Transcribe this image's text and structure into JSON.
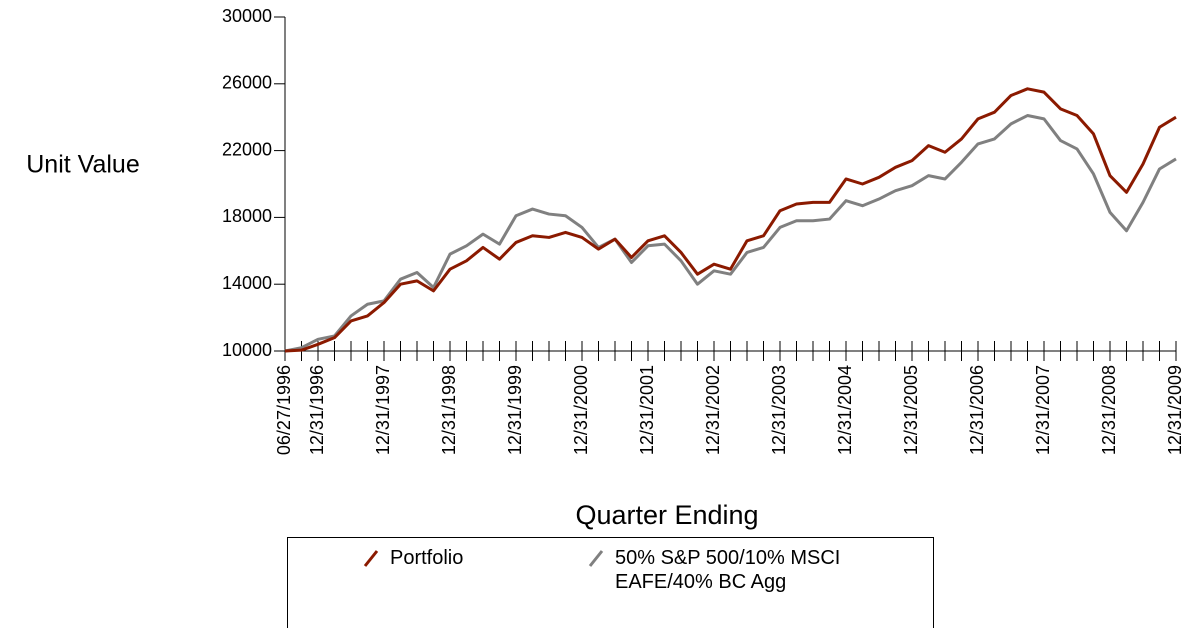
{
  "chart_data": {
    "type": "line",
    "y_label": "Unit Value",
    "x_label": "Quarter Ending",
    "categories": [
      "06/27/1996",
      null,
      "12/31/1996",
      null,
      null,
      null,
      "12/31/1997",
      null,
      null,
      null,
      "12/31/1998",
      null,
      null,
      null,
      "12/31/1999",
      null,
      null,
      null,
      "12/31/2000",
      null,
      null,
      null,
      "12/31/2001",
      null,
      null,
      null,
      "12/31/2002",
      null,
      null,
      null,
      "12/31/2003",
      null,
      null,
      null,
      "12/31/2004",
      null,
      null,
      null,
      "12/31/2005",
      null,
      null,
      null,
      "12/31/2006",
      null,
      null,
      null,
      "12/31/2007",
      null,
      null,
      null,
      "12/31/2008",
      null,
      null,
      null,
      "12/31/2009"
    ],
    "series": [
      {
        "name": "Portfolio",
        "color": "#8b1a00",
        "values": [
          10000,
          10050,
          10400,
          10800,
          11800,
          12100,
          12900,
          14000,
          14200,
          13600,
          14900,
          15400,
          16200,
          15500,
          16500,
          16900,
          16800,
          17100,
          16800,
          16100,
          16700,
          15600,
          16600,
          16900,
          15900,
          14600,
          15200,
          14900,
          16600,
          16900,
          18400,
          18800,
          18900,
          18900,
          20300,
          20000,
          20400,
          21000,
          21400,
          22300,
          21900,
          22700,
          23900,
          24300,
          25300,
          25700,
          25500,
          24500,
          24100,
          23000,
          20500,
          19500,
          21200,
          23400,
          24000
        ]
      },
      {
        "name": "50% S&P 500/10% MSCI EAFE/40% BC Agg",
        "color": "#808080",
        "values": [
          10000,
          10200,
          10700,
          10900,
          12100,
          12800,
          13000,
          14300,
          14700,
          13800,
          15800,
          16300,
          17000,
          16400,
          18100,
          18500,
          18200,
          18100,
          17400,
          16200,
          16700,
          15300,
          16300,
          16400,
          15400,
          14000,
          14800,
          14600,
          15900,
          16200,
          17400,
          17800,
          17800,
          17900,
          19000,
          18700,
          19100,
          19600,
          19900,
          20500,
          20300,
          21300,
          22400,
          22700,
          23600,
          24100,
          23900,
          22600,
          22100,
          20600,
          18300,
          17200,
          18900,
          20900,
          21500
        ]
      }
    ],
    "ylim": [
      10000,
      30000
    ],
    "yticks": [
      10000,
      14000,
      18000,
      22000,
      26000,
      30000
    ]
  }
}
